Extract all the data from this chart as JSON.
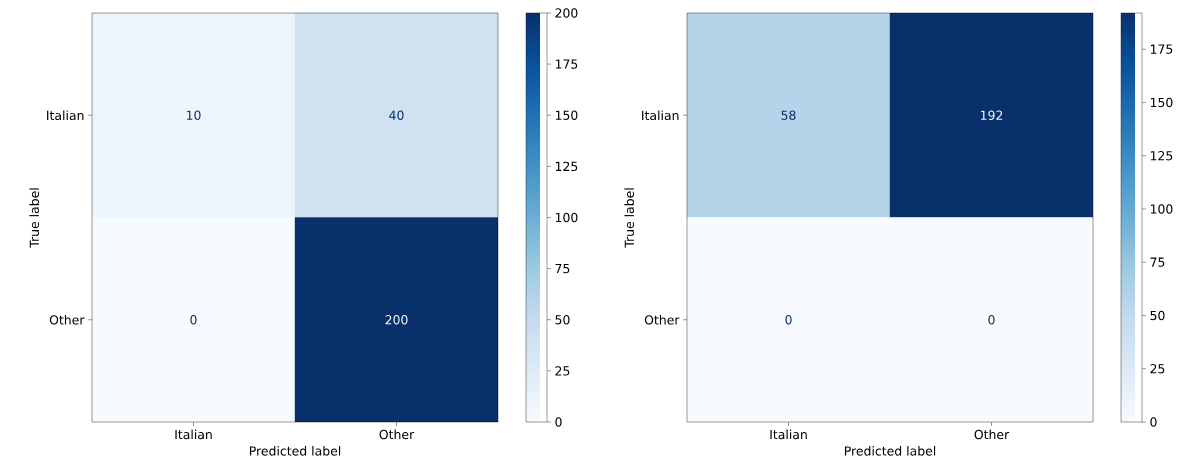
{
  "chart_data": [
    {
      "type": "heatmap",
      "categories": [
        "Italian",
        "Other"
      ],
      "y_categories": [
        "Italian",
        "Other"
      ],
      "cells": [
        [
          10,
          40
        ],
        [
          0,
          200
        ]
      ],
      "xlabel": "Predicted label",
      "ylabel": "True label",
      "clim": [
        0,
        200
      ],
      "cticks": [
        0,
        25,
        50,
        75,
        100,
        125,
        150,
        175,
        200
      ],
      "data_labels": true
    },
    {
      "type": "heatmap",
      "categories": [
        "Italian",
        "Other"
      ],
      "y_categories": [
        "Italian",
        "Other"
      ],
      "cells": [
        [
          58,
          192
        ],
        [
          0,
          0
        ]
      ],
      "xlabel": "Predicted label",
      "ylabel": "True label",
      "clim": [
        0,
        192
      ],
      "cticks": [
        0,
        25,
        50,
        75,
        100,
        125,
        150,
        175
      ],
      "data_labels": true
    }
  ]
}
